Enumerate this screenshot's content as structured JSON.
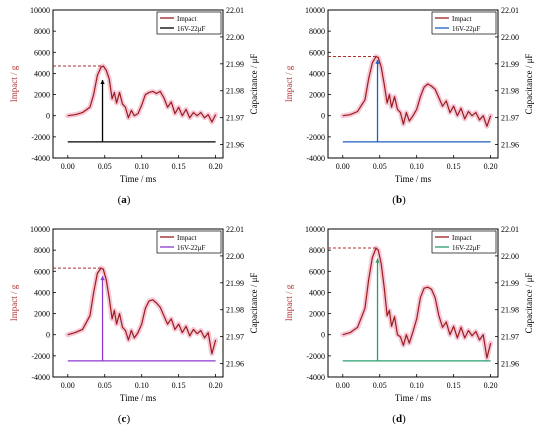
{
  "panels_order": [
    "a",
    "b",
    "c",
    "d"
  ],
  "colors": {
    "impact": "#9b1c1c",
    "impact_glow": "#f6c8d8",
    "axis_left": "#b03030",
    "axis_right": "#000000",
    "dashed_ref": "#b03030"
  },
  "chart_data": [
    {
      "panel_label": "(a)",
      "type": "line",
      "xlabel": "Time / ms",
      "ylabel": "Impact / g",
      "ylabel_right": "Capacitance / μF",
      "xlim": [
        -0.02,
        0.21
      ],
      "ylim": [
        -4000,
        10000
      ],
      "ylim_right": [
        21.955,
        22.01
      ],
      "x_ticks": [
        "0.00",
        "0.05",
        "0.10",
        "0.15",
        "0.20"
      ],
      "y_ticks": [
        "-4000",
        "-2000",
        "0",
        "2000",
        "4000",
        "6000",
        "8000",
        "10000"
      ],
      "y_right_ticks": [
        "21.96",
        "21.97",
        "21.98",
        "21.99",
        "22.00",
        "22.01"
      ],
      "legend": [
        "Impact",
        "16V-22μF"
      ],
      "legend_position": "top-right",
      "series": [
        {
          "name": "Impact",
          "color": "#9b1c1c",
          "x": [
            0.0,
            0.01,
            0.02,
            0.03,
            0.035,
            0.04,
            0.045,
            0.048,
            0.052,
            0.056,
            0.06,
            0.063,
            0.066,
            0.07,
            0.074,
            0.078,
            0.082,
            0.086,
            0.09,
            0.095,
            0.1,
            0.105,
            0.11,
            0.115,
            0.12,
            0.125,
            0.13,
            0.135,
            0.14,
            0.145,
            0.15,
            0.155,
            0.16,
            0.165,
            0.17,
            0.175,
            0.18,
            0.185,
            0.19,
            0.195,
            0.2
          ],
          "y": [
            0,
            100,
            300,
            800,
            2000,
            3800,
            4600,
            4700,
            4300,
            3500,
            1600,
            2200,
            1200,
            2200,
            1100,
            800,
            -200,
            500,
            0,
            200,
            1000,
            2000,
            2200,
            2300,
            2100,
            2300,
            1700,
            800,
            1300,
            200,
            800,
            0,
            600,
            -200,
            300,
            0,
            300,
            -200,
            100,
            -600,
            100
          ]
        },
        {
          "name": "16V-22μF",
          "color": "#000000",
          "axis": "right",
          "x": [
            0.0,
            0.047,
            0.047,
            0.047,
            0.2
          ],
          "y": [
            21.961,
            21.961,
            21.984,
            21.961,
            21.961
          ]
        }
      ],
      "reference_peak": 4700
    },
    {
      "panel_label": "(b)",
      "type": "line",
      "xlabel": "Time / ms",
      "ylabel": "Impact / g",
      "ylabel_right": "Capacitance / μF",
      "xlim": [
        -0.02,
        0.21
      ],
      "ylim": [
        -4000,
        10000
      ],
      "ylim_right": [
        21.955,
        22.01
      ],
      "x_ticks": [
        "0.00",
        "0.05",
        "0.10",
        "0.15",
        "0.20"
      ],
      "y_ticks": [
        "-4000",
        "-2000",
        "0",
        "2000",
        "4000",
        "6000",
        "8000",
        "10000"
      ],
      "y_right_ticks": [
        "21.96",
        "21.97",
        "21.98",
        "21.99",
        "22.00",
        "22.01"
      ],
      "legend": [
        "Impact",
        "16V-22μF"
      ],
      "legend_position": "top-right",
      "series": [
        {
          "name": "Impact",
          "color": "#9b1c1c",
          "x": [
            0.0,
            0.01,
            0.02,
            0.03,
            0.035,
            0.04,
            0.045,
            0.048,
            0.052,
            0.056,
            0.06,
            0.063,
            0.066,
            0.07,
            0.074,
            0.078,
            0.082,
            0.086,
            0.09,
            0.095,
            0.1,
            0.105,
            0.11,
            0.115,
            0.12,
            0.125,
            0.13,
            0.135,
            0.14,
            0.145,
            0.15,
            0.155,
            0.16,
            0.165,
            0.17,
            0.175,
            0.18,
            0.185,
            0.19,
            0.195,
            0.2
          ],
          "y": [
            0,
            100,
            400,
            1500,
            3500,
            5000,
            5600,
            5500,
            4600,
            3000,
            1200,
            2000,
            800,
            1800,
            600,
            300,
            -800,
            300,
            -500,
            0,
            600,
            1800,
            2700,
            3000,
            2800,
            2500,
            1700,
            900,
            1400,
            300,
            900,
            0,
            700,
            -300,
            400,
            0,
            300,
            -400,
            0,
            -1000,
            0
          ]
        },
        {
          "name": "16V-22μF",
          "color": "#1f5fbf",
          "axis": "right",
          "x": [
            0.0,
            0.047,
            0.047,
            0.047,
            0.2
          ],
          "y": [
            21.961,
            21.961,
            21.9915,
            21.961,
            21.961
          ]
        }
      ],
      "reference_peak": 5600
    },
    {
      "panel_label": "(c)",
      "type": "line",
      "xlabel": "Time / ms",
      "ylabel": "Impact / g",
      "ylabel_right": "Capacitance / μF",
      "xlim": [
        -0.02,
        0.21
      ],
      "ylim": [
        -4000,
        10000
      ],
      "ylim_right": [
        21.955,
        22.01
      ],
      "x_ticks": [
        "0.00",
        "0.05",
        "0.10",
        "0.15",
        "0.20"
      ],
      "y_ticks": [
        "-4000",
        "-2000",
        "0",
        "2000",
        "4000",
        "6000",
        "8000",
        "10000"
      ],
      "y_right_ticks": [
        "21.96",
        "21.97",
        "21.98",
        "21.99",
        "22.00",
        "22.01"
      ],
      "legend": [
        "Impact",
        "16V-22μF"
      ],
      "legend_position": "top-right",
      "series": [
        {
          "name": "Impact",
          "color": "#9b1c1c",
          "x": [
            0.0,
            0.01,
            0.02,
            0.03,
            0.035,
            0.04,
            0.045,
            0.048,
            0.052,
            0.056,
            0.06,
            0.063,
            0.066,
            0.07,
            0.074,
            0.078,
            0.082,
            0.086,
            0.09,
            0.095,
            0.1,
            0.105,
            0.11,
            0.115,
            0.12,
            0.125,
            0.13,
            0.135,
            0.14,
            0.145,
            0.15,
            0.155,
            0.16,
            0.165,
            0.17,
            0.175,
            0.18,
            0.185,
            0.19,
            0.195,
            0.2
          ],
          "y": [
            0,
            200,
            500,
            1800,
            4000,
            5800,
            6300,
            6200,
            5200,
            3500,
            1500,
            2300,
            1000,
            2000,
            700,
            400,
            -500,
            400,
            -300,
            200,
            1000,
            2500,
            3200,
            3300,
            3000,
            2600,
            1800,
            1000,
            1500,
            500,
            1000,
            200,
            800,
            -100,
            500,
            100,
            400,
            -300,
            200,
            -1800,
            -500
          ]
        },
        {
          "name": "16V-22μF",
          "color": "#8a3ad1",
          "axis": "right",
          "x": [
            0.0,
            0.047,
            0.047,
            0.047,
            0.2
          ],
          "y": [
            21.961,
            21.961,
            21.9925,
            21.961,
            21.961
          ]
        }
      ],
      "reference_peak": 6300
    },
    {
      "panel_label": "(d)",
      "type": "line",
      "xlabel": "Time / ms",
      "ylabel": "Impact / g",
      "ylabel_right": "Capacitance / μF",
      "xlim": [
        -0.02,
        0.21
      ],
      "ylim": [
        -4000,
        10000
      ],
      "ylim_right": [
        21.955,
        22.01
      ],
      "x_ticks": [
        "0.00",
        "0.05",
        "0.10",
        "0.15",
        "0.20"
      ],
      "y_ticks": [
        "-4000",
        "-2000",
        "0",
        "2000",
        "4000",
        "6000",
        "8000",
        "10000"
      ],
      "y_right_ticks": [
        "21.96",
        "21.97",
        "21.98",
        "21.99",
        "22.00",
        "22.01"
      ],
      "legend": [
        "Impact",
        "16V-22μF"
      ],
      "legend_position": "top-right",
      "series": [
        {
          "name": "Impact",
          "color": "#9b1c1c",
          "x": [
            0.0,
            0.01,
            0.02,
            0.03,
            0.035,
            0.04,
            0.045,
            0.048,
            0.052,
            0.056,
            0.06,
            0.063,
            0.066,
            0.07,
            0.074,
            0.078,
            0.082,
            0.086,
            0.09,
            0.095,
            0.1,
            0.105,
            0.11,
            0.115,
            0.12,
            0.125,
            0.13,
            0.135,
            0.14,
            0.145,
            0.15,
            0.155,
            0.16,
            0.165,
            0.17,
            0.175,
            0.18,
            0.185,
            0.19,
            0.195,
            0.2
          ],
          "y": [
            0,
            200,
            700,
            2500,
            5200,
            7300,
            8200,
            8000,
            6700,
            4500,
            1800,
            2300,
            800,
            1700,
            0,
            -200,
            -1000,
            0,
            -800,
            300,
            1500,
            3500,
            4400,
            4500,
            4300,
            3500,
            1800,
            700,
            1200,
            0,
            800,
            -300,
            700,
            -300,
            400,
            -100,
            300,
            -500,
            0,
            -2200,
            -800
          ]
        },
        {
          "name": "16V-22μF",
          "color": "#2a9d6e",
          "axis": "right",
          "x": [
            0.0,
            0.047,
            0.047,
            0.047,
            0.2
          ],
          "y": [
            21.961,
            21.961,
            21.999,
            21.961,
            21.961
          ]
        }
      ],
      "reference_peak": 8200
    }
  ]
}
